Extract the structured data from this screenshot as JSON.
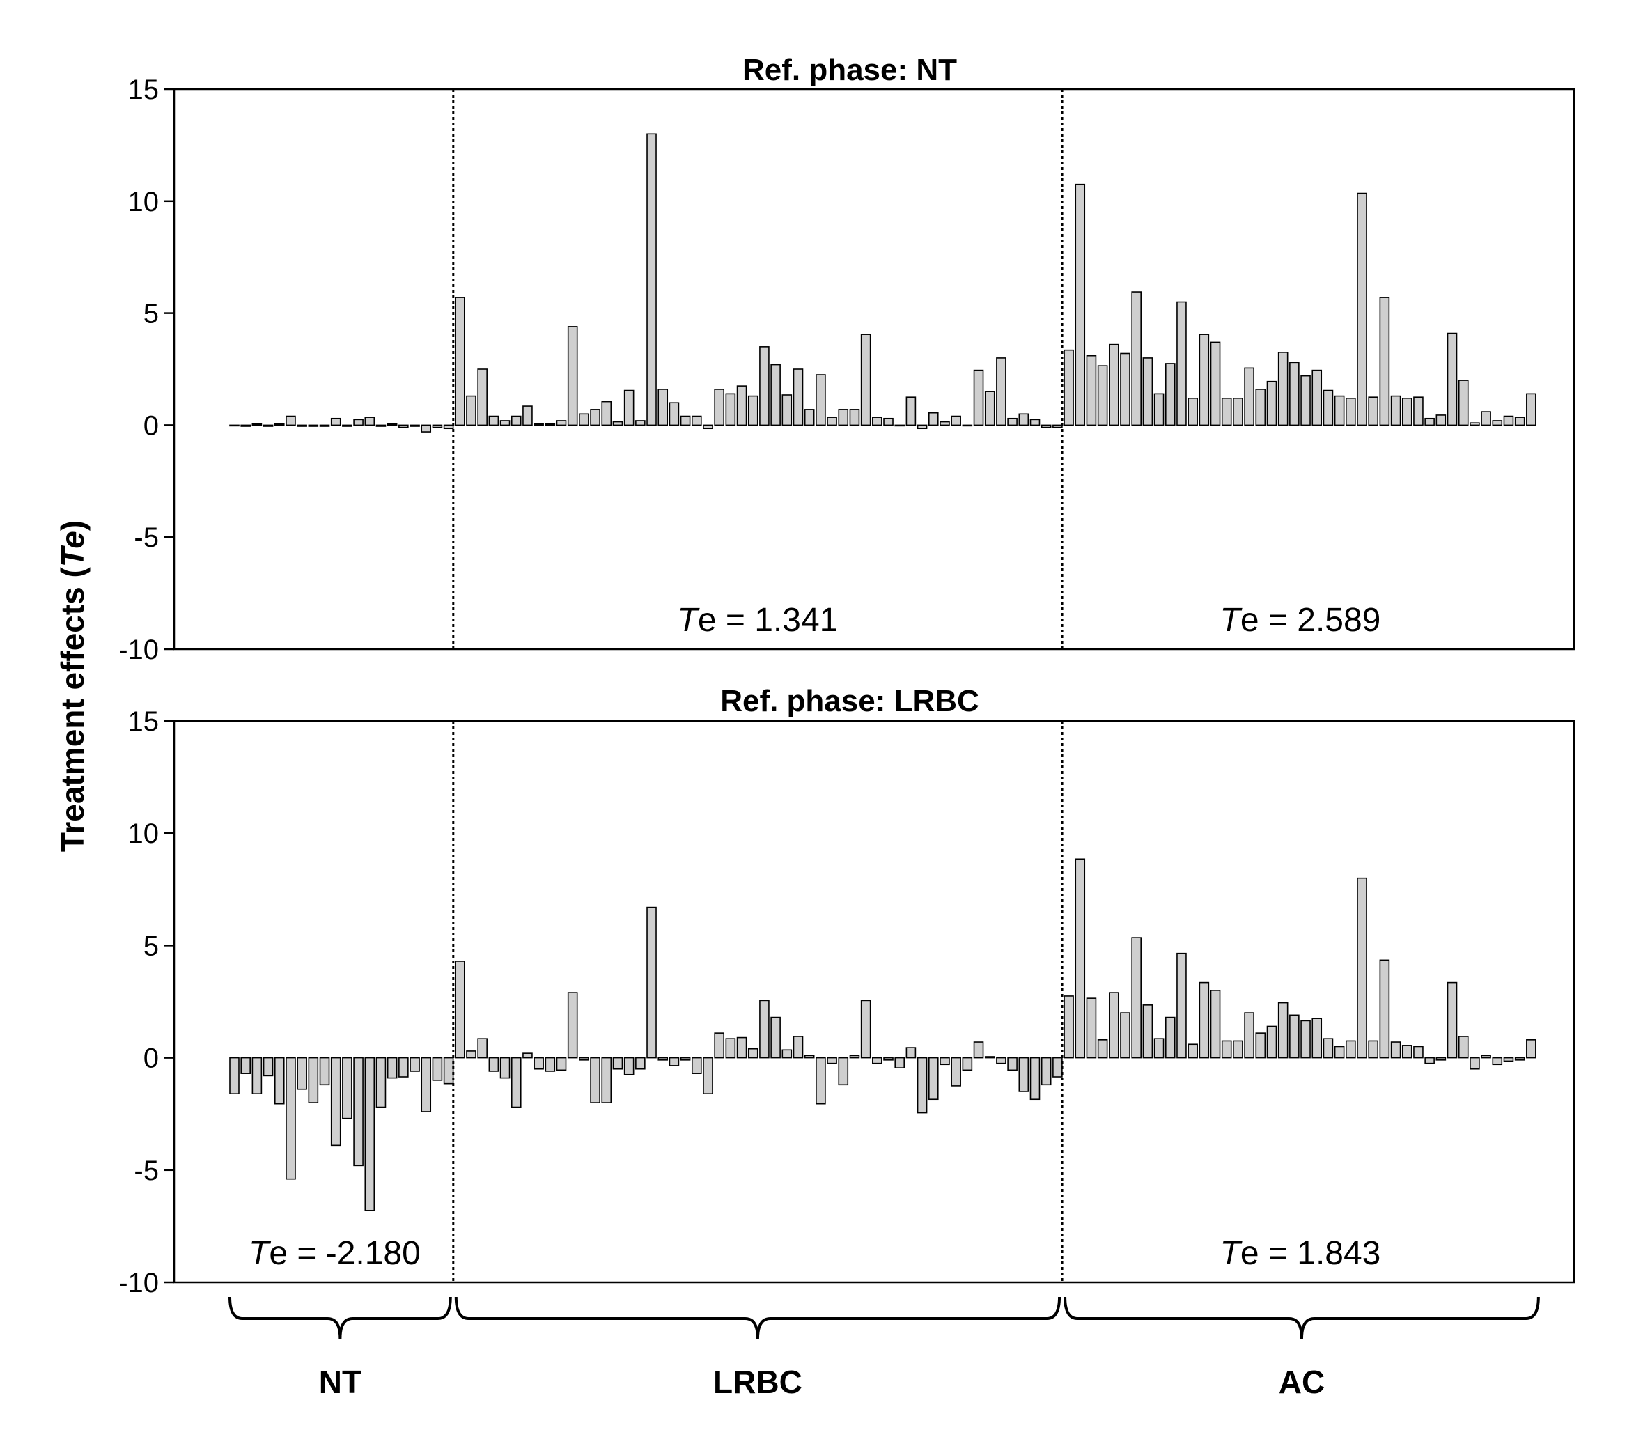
{
  "chart_data": {
    "type": "bar",
    "ylabel_prefix": "Treatment effects (",
    "ylabel_symbol": "Te",
    "ylabel_suffix": ")",
    "ylim": [
      -10,
      15
    ],
    "yticks": [
      15,
      10,
      5,
      0,
      -5,
      -10
    ],
    "group_labels": [
      "NT",
      "LRBC",
      "AC"
    ],
    "te_symbol": "T",
    "te_symbol_rest": "e",
    "panels": [
      {
        "title": "Ref. phase: NT",
        "series": [
          {
            "name": "NT",
            "values": [
              0.0,
              -0.05,
              0.05,
              -0.05,
              0.05,
              0.4,
              -0.05,
              -0.05,
              -0.05,
              0.3,
              -0.05,
              0.25,
              0.35,
              -0.05,
              0.05,
              -0.1,
              -0.05,
              -0.3,
              -0.1,
              -0.15
            ]
          },
          {
            "name": "LRBC",
            "values": [
              5.7,
              1.3,
              2.5,
              0.4,
              0.2,
              0.4,
              0.85,
              0.05,
              0.05,
              0.2,
              4.4,
              0.5,
              0.7,
              1.05,
              0.15,
              1.55,
              0.2,
              13.0,
              1.6,
              1.0,
              0.4,
              0.4,
              -0.15,
              1.6,
              1.4,
              1.75,
              1.3,
              3.5,
              2.7,
              1.35,
              2.5,
              0.7,
              2.25,
              0.35,
              0.7,
              0.7,
              4.05,
              0.35,
              0.3,
              0.0,
              1.25,
              -0.15,
              0.55,
              0.15,
              0.4,
              0.0,
              2.45,
              1.5,
              3.0,
              0.3,
              0.5,
              0.25,
              -0.1,
              -0.1
            ]
          },
          {
            "name": "AC",
            "values": [
              3.35,
              10.75,
              3.1,
              2.65,
              3.6,
              3.2,
              5.95,
              3.0,
              1.4,
              2.75,
              5.5,
              1.2,
              4.05,
              3.7,
              1.2,
              1.2,
              2.55,
              1.6,
              1.95,
              3.25,
              2.8,
              2.2,
              2.45,
              1.55,
              1.3,
              1.2,
              10.35,
              1.25,
              5.7,
              1.3,
              1.2,
              1.25,
              0.3,
              0.45,
              4.1,
              2.0,
              0.1,
              0.6,
              0.2,
              0.4,
              0.35,
              1.4
            ]
          }
        ],
        "te_values": [
          "",
          "= 1.341",
          "= 2.589"
        ]
      },
      {
        "title": "Ref. phase: LRBC",
        "series": [
          {
            "name": "NT",
            "values": [
              -1.6,
              -0.7,
              -1.6,
              -0.8,
              -2.05,
              -5.4,
              -1.4,
              -2.0,
              -1.2,
              -3.9,
              -2.7,
              -4.8,
              -6.8,
              -2.2,
              -0.9,
              -0.85,
              -0.6,
              -2.4,
              -1.0,
              -1.15
            ]
          },
          {
            "name": "LRBC",
            "values": [
              4.3,
              0.3,
              0.85,
              -0.6,
              -0.9,
              -2.2,
              0.2,
              -0.5,
              -0.6,
              -0.55,
              2.9,
              -0.1,
              -2.0,
              -2.0,
              -0.5,
              -0.75,
              -0.5,
              6.7,
              -0.1,
              -0.35,
              -0.1,
              -0.7,
              -1.6,
              1.1,
              0.85,
              0.9,
              0.4,
              2.55,
              1.8,
              0.35,
              0.95,
              0.1,
              -2.05,
              -0.25,
              -1.2,
              0.1,
              2.55,
              -0.25,
              -0.1,
              -0.45,
              0.45,
              -2.45,
              -1.85,
              -0.3,
              -1.25,
              -0.55,
              0.7,
              0.05,
              -0.25,
              -0.55,
              -1.5,
              -1.85,
              -1.2,
              -0.85
            ]
          },
          {
            "name": "AC",
            "values": [
              2.75,
              8.85,
              2.65,
              0.8,
              2.9,
              2.0,
              5.35,
              2.35,
              0.85,
              1.8,
              4.65,
              0.6,
              3.35,
              3.0,
              0.75,
              0.75,
              2.0,
              1.1,
              1.4,
              2.45,
              1.9,
              1.65,
              1.75,
              0.85,
              0.5,
              0.75,
              8.0,
              0.75,
              4.35,
              0.7,
              0.55,
              0.5,
              -0.25,
              -0.1,
              3.35,
              0.95,
              -0.5,
              0.1,
              -0.3,
              -0.15,
              -0.1,
              0.8
            ]
          }
        ],
        "te_values": [
          "= -2.180",
          "",
          "= 1.843"
        ]
      }
    ]
  }
}
